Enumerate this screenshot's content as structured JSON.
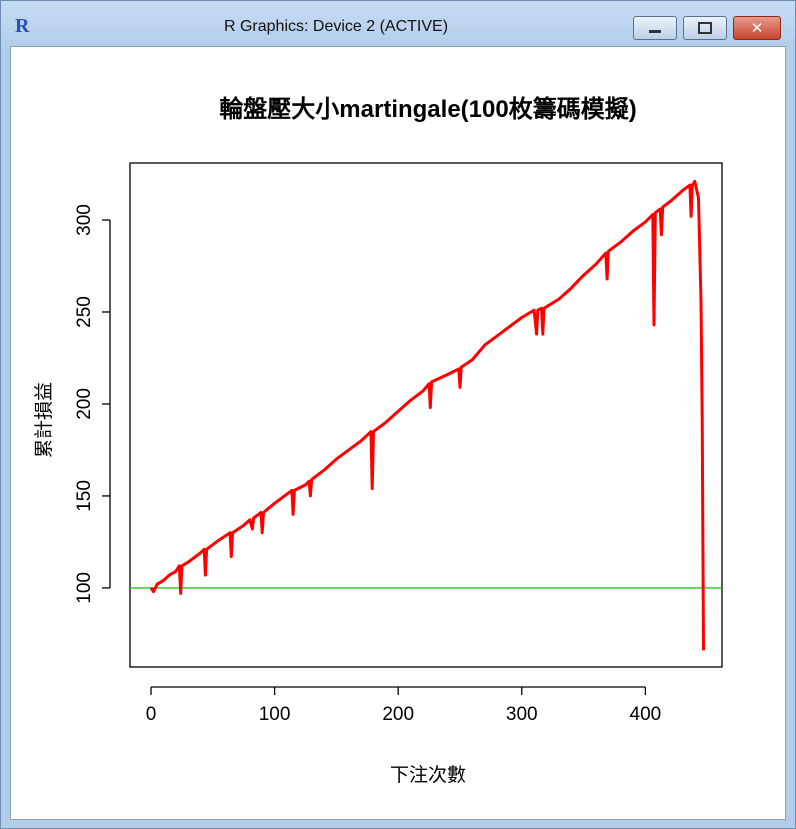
{
  "window": {
    "icon": "R",
    "title": "R Graphics: Device 2 (ACTIVE)"
  },
  "chart_data": {
    "type": "line",
    "title": "輪盤壓大小martingale(100枚籌碼模擬)",
    "x_label": "下注次數",
    "y_label": "累計損益",
    "x": [
      0,
      2,
      5,
      10,
      15,
      20,
      23,
      24,
      25,
      30,
      40,
      43,
      44,
      45,
      55,
      64,
      65,
      66,
      75,
      80,
      82,
      83,
      89,
      90,
      91,
      100,
      110,
      114,
      115,
      116,
      125,
      128,
      129,
      130,
      140,
      150,
      160,
      170,
      178,
      179,
      180,
      190,
      200,
      210,
      220,
      225,
      226,
      227,
      240,
      249,
      250,
      251,
      260,
      270,
      280,
      290,
      300,
      310,
      312,
      313,
      316,
      317,
      318,
      330,
      340,
      350,
      360,
      368,
      369,
      370,
      380,
      390,
      400,
      406,
      407,
      408,
      412,
      413,
      414,
      420,
      430,
      436,
      437,
      438,
      440,
      443,
      445,
      446,
      447
    ],
    "values": [
      100,
      98,
      102,
      104,
      107,
      109,
      112,
      97,
      112,
      114,
      119,
      121,
      107,
      121,
      126,
      130,
      117,
      130,
      134,
      137,
      132,
      138,
      141,
      130,
      141,
      146,
      151,
      153,
      140,
      153,
      156,
      158,
      150,
      159,
      164,
      170,
      175,
      180,
      185,
      154,
      185,
      190,
      196,
      202,
      207,
      211,
      198,
      212,
      216,
      219,
      209,
      220,
      224,
      232,
      237,
      242,
      247,
      251,
      238,
      251,
      252,
      238,
      252,
      257,
      263,
      270,
      276,
      282,
      268,
      283,
      288,
      294,
      299,
      303,
      243,
      304,
      306,
      292,
      307,
      310,
      316,
      319,
      302,
      319,
      321,
      312,
      256,
      193,
      66
    ],
    "color": "#ff0000",
    "hline": 100,
    "hline_color": "#33cc33",
    "xlim": [
      -17,
      462
    ],
    "ylim": [
      57,
      331
    ],
    "xticks": [
      0,
      100,
      200,
      300,
      400
    ],
    "yticks": [
      100,
      150,
      200,
      250,
      300
    ]
  }
}
